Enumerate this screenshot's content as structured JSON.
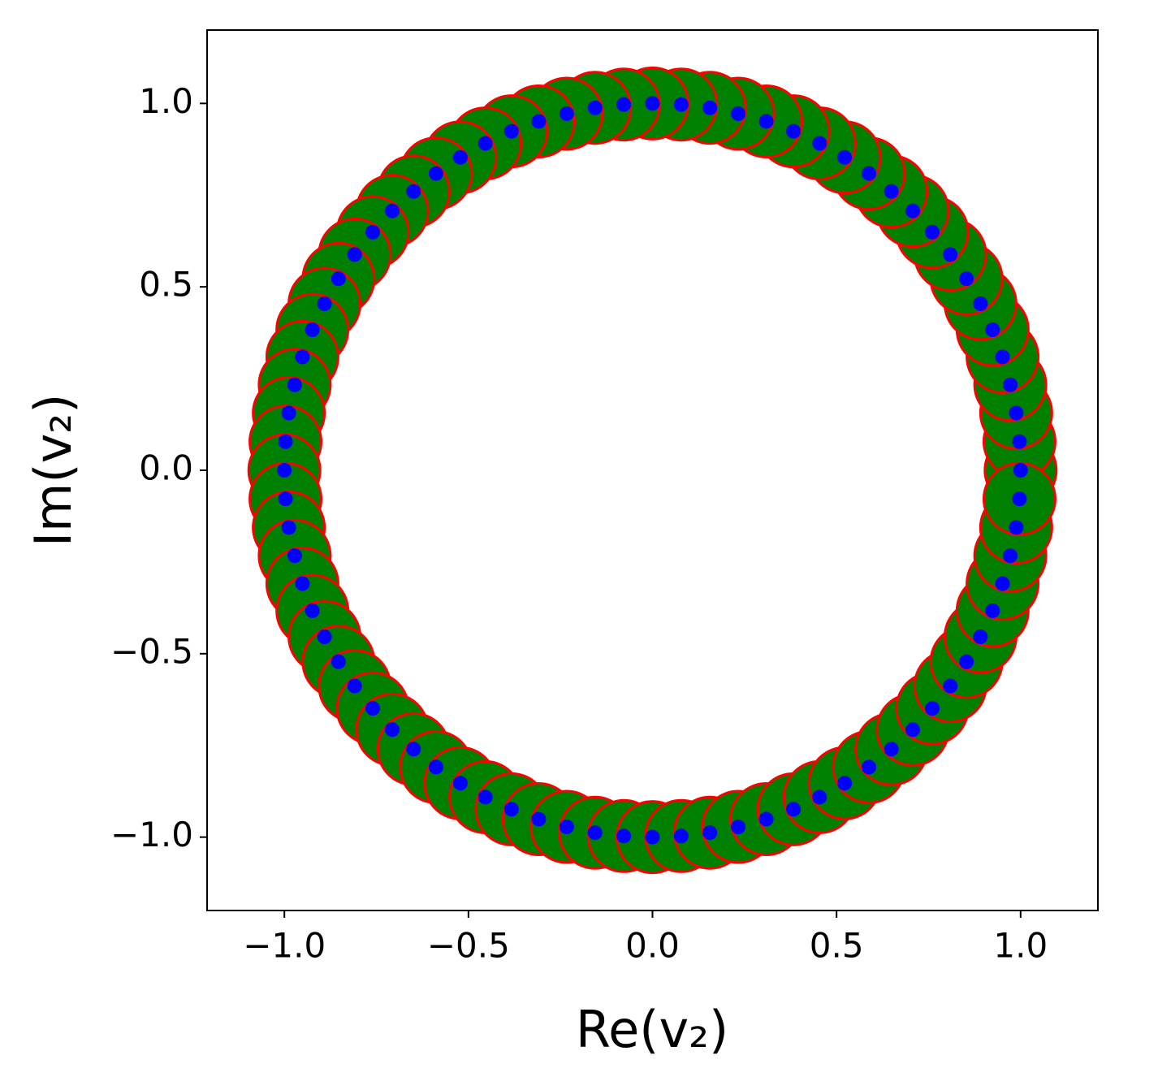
{
  "chart_data": {
    "type": "scatter",
    "xlabel": "Re(v₂)",
    "ylabel": "Im(v₂)",
    "xlim": [
      -1.21,
      1.21
    ],
    "ylim": [
      -1.2,
      1.2
    ],
    "xticks": [
      {
        "value": -1,
        "label": "−1.0"
      },
      {
        "value": -0.5,
        "label": "−0.5"
      },
      {
        "value": 0,
        "label": "0.0"
      },
      {
        "value": 0.5,
        "label": "0.5"
      },
      {
        "value": 1,
        "label": "1.0"
      }
    ],
    "yticks": [
      {
        "value": -1,
        "label": "−1.0"
      },
      {
        "value": -0.5,
        "label": "−0.5"
      },
      {
        "value": 0,
        "label": "0.0"
      },
      {
        "value": 0.5,
        "label": "0.5"
      },
      {
        "value": 1,
        "label": "1.0"
      }
    ],
    "series": [
      {
        "color": "#008000",
        "edgecolor": "#ff0000",
        "x": [
          1,
          0.997,
          0.988,
          0.972,
          0.951,
          0.924,
          0.891,
          0.853,
          0.809,
          0.76,
          0.707,
          0.649,
          0.588,
          0.522,
          0.454,
          0.383,
          0.309,
          0.233,
          0.156,
          0.078,
          0,
          -0.078,
          -0.156,
          -0.233,
          -0.309,
          -0.383,
          -0.454,
          -0.522,
          -0.588,
          -0.649,
          -0.707,
          -0.76,
          -0.809,
          -0.853,
          -0.891,
          -0.924,
          -0.951,
          -0.972,
          -0.988,
          -0.997,
          -1,
          -0.997,
          -0.988,
          -0.972,
          -0.951,
          -0.924,
          -0.891,
          -0.853,
          -0.809,
          -0.76,
          -0.707,
          -0.649,
          -0.588,
          -0.522,
          -0.454,
          -0.383,
          -0.309,
          -0.233,
          -0.156,
          -0.078,
          0,
          0.078,
          0.156,
          0.233,
          0.309,
          0.383,
          0.454,
          0.522,
          0.588,
          0.649,
          0.707,
          0.76,
          0.809,
          0.853,
          0.891,
          0.924,
          0.951,
          0.972,
          0.988,
          0.997
        ],
        "values": [
          0,
          0.078,
          0.156,
          0.233,
          0.309,
          0.383,
          0.454,
          0.522,
          0.588,
          0.649,
          0.707,
          0.76,
          0.809,
          0.853,
          0.891,
          0.924,
          0.951,
          0.972,
          0.988,
          0.997,
          1,
          0.997,
          0.988,
          0.972,
          0.951,
          0.924,
          0.891,
          0.853,
          0.809,
          0.76,
          0.707,
          0.649,
          0.588,
          0.522,
          0.454,
          0.383,
          0.309,
          0.233,
          0.156,
          0.078,
          0,
          -0.078,
          -0.156,
          -0.233,
          -0.309,
          -0.383,
          -0.454,
          -0.522,
          -0.588,
          -0.649,
          -0.707,
          -0.76,
          -0.809,
          -0.853,
          -0.891,
          -0.924,
          -0.951,
          -0.972,
          -0.988,
          -0.997,
          -1,
          -0.997,
          -0.988,
          -0.972,
          -0.951,
          -0.924,
          -0.891,
          -0.853,
          -0.809,
          -0.76,
          -0.707,
          -0.649,
          -0.588,
          -0.522,
          -0.454,
          -0.383,
          -0.309,
          -0.233,
          -0.156,
          -0.078
        ]
      },
      {
        "color": "#0000ff",
        "x": [
          1,
          0.997,
          0.988,
          0.972,
          0.951,
          0.924,
          0.891,
          0.853,
          0.809,
          0.76,
          0.707,
          0.649,
          0.588,
          0.522,
          0.454,
          0.383,
          0.309,
          0.233,
          0.156,
          0.078,
          0,
          -0.078,
          -0.156,
          -0.233,
          -0.309,
          -0.383,
          -0.454,
          -0.522,
          -0.588,
          -0.649,
          -0.707,
          -0.76,
          -0.809,
          -0.853,
          -0.891,
          -0.924,
          -0.951,
          -0.972,
          -0.988,
          -0.997,
          -1,
          -0.997,
          -0.988,
          -0.972,
          -0.951,
          -0.924,
          -0.891,
          -0.853,
          -0.809,
          -0.76,
          -0.707,
          -0.649,
          -0.588,
          -0.522,
          -0.454,
          -0.383,
          -0.309,
          -0.233,
          -0.156,
          -0.078,
          0,
          0.078,
          0.156,
          0.233,
          0.309,
          0.383,
          0.454,
          0.522,
          0.588,
          0.649,
          0.707,
          0.76,
          0.809,
          0.853,
          0.891,
          0.924,
          0.951,
          0.972,
          0.988,
          0.997
        ],
        "values": [
          0,
          0.078,
          0.156,
          0.233,
          0.309,
          0.383,
          0.454,
          0.522,
          0.588,
          0.649,
          0.707,
          0.76,
          0.809,
          0.853,
          0.891,
          0.924,
          0.951,
          0.972,
          0.988,
          0.997,
          1,
          0.997,
          0.988,
          0.972,
          0.951,
          0.924,
          0.891,
          0.853,
          0.809,
          0.76,
          0.707,
          0.649,
          0.588,
          0.522,
          0.454,
          0.383,
          0.309,
          0.233,
          0.156,
          0.078,
          0,
          -0.078,
          -0.156,
          -0.233,
          -0.309,
          -0.383,
          -0.454,
          -0.522,
          -0.588,
          -0.649,
          -0.707,
          -0.76,
          -0.809,
          -0.853,
          -0.891,
          -0.924,
          -0.951,
          -0.972,
          -0.988,
          -0.997,
          -1,
          -0.997,
          -0.988,
          -0.972,
          -0.951,
          -0.924,
          -0.891,
          -0.853,
          -0.809,
          -0.76,
          -0.707,
          -0.649,
          -0.588,
          -0.522,
          -0.454,
          -0.383,
          -0.309,
          -0.233,
          -0.156,
          -0.078
        ]
      }
    ]
  }
}
